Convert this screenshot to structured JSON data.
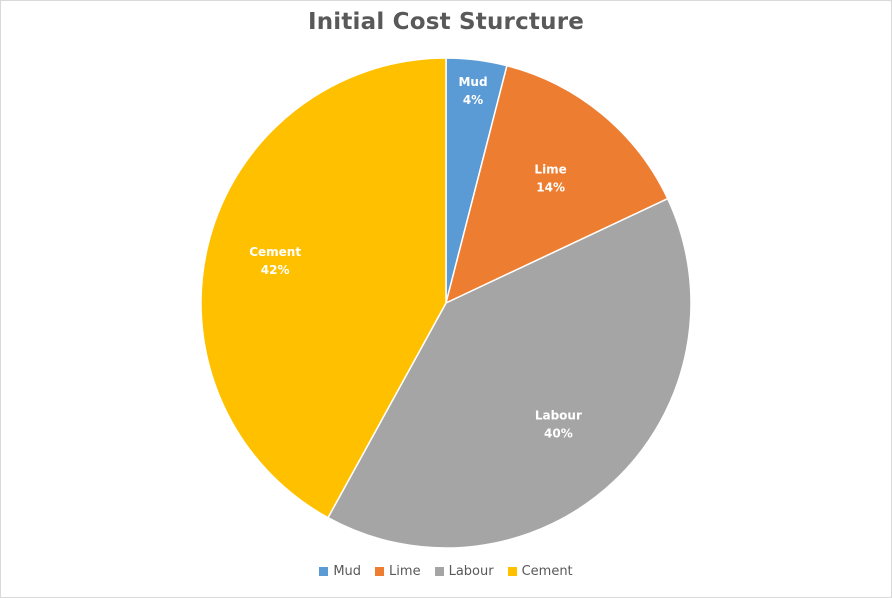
{
  "chart_data": {
    "type": "pie",
    "title": "Initial Cost Sturcture",
    "categories": [
      "Mud",
      "Lime",
      "Labour",
      "Cement"
    ],
    "values": [
      4,
      14,
      40,
      42
    ],
    "value_labels": [
      "4%",
      "14%",
      "40%",
      "42%"
    ],
    "colors": [
      "#5b9bd5",
      "#ed7d31",
      "#a5a5a5",
      "#ffc000"
    ],
    "legend": {
      "position": "bottom",
      "entries": [
        "Mud",
        "Lime",
        "Labour",
        "Cement"
      ]
    }
  }
}
